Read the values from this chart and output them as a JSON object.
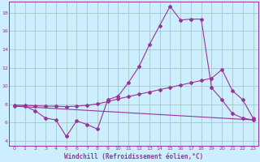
{
  "background_color": "#cceeff",
  "line_color": "#993399",
  "grid_color": "#aacccc",
  "xlabel": "Windchill (Refroidissement éolien,°C)",
  "x_ticks": [
    0,
    1,
    2,
    3,
    4,
    5,
    6,
    7,
    8,
    9,
    10,
    11,
    12,
    13,
    14,
    15,
    16,
    17,
    18,
    19,
    20,
    21,
    22,
    23
  ],
  "y_ticks": [
    4,
    6,
    8,
    10,
    12,
    14,
    16,
    18
  ],
  "xlim": [
    -0.5,
    23.5
  ],
  "ylim": [
    3.5,
    19.2
  ],
  "curve1_x": [
    0,
    1,
    2,
    3,
    4,
    5,
    6,
    7,
    8,
    9,
    10,
    11,
    12,
    13,
    14,
    15,
    16,
    17,
    18,
    19,
    20,
    21,
    22,
    23
  ],
  "curve1_y": [
    7.8,
    7.8,
    7.3,
    6.5,
    6.3,
    4.5,
    6.2,
    5.8,
    5.3,
    8.5,
    8.9,
    10.4,
    12.1,
    14.5,
    16.6,
    18.7,
    17.2,
    17.3,
    17.3,
    9.8,
    8.5,
    7.0,
    6.5,
    6.3
  ],
  "curve2_x": [
    0,
    23
  ],
  "curve2_y": [
    7.8,
    6.3
  ],
  "curve3_x": [
    0,
    1,
    2,
    3,
    4,
    5,
    6,
    7,
    8,
    9,
    10,
    11,
    12,
    13,
    14,
    15,
    16,
    17,
    18,
    19,
    20,
    21,
    22,
    23
  ],
  "curve3_y": [
    7.9,
    7.9,
    7.85,
    7.8,
    7.8,
    7.75,
    7.8,
    7.9,
    8.05,
    8.3,
    8.6,
    8.85,
    9.1,
    9.35,
    9.6,
    9.85,
    10.1,
    10.35,
    10.6,
    10.85,
    11.8,
    9.5,
    8.5,
    6.5
  ]
}
